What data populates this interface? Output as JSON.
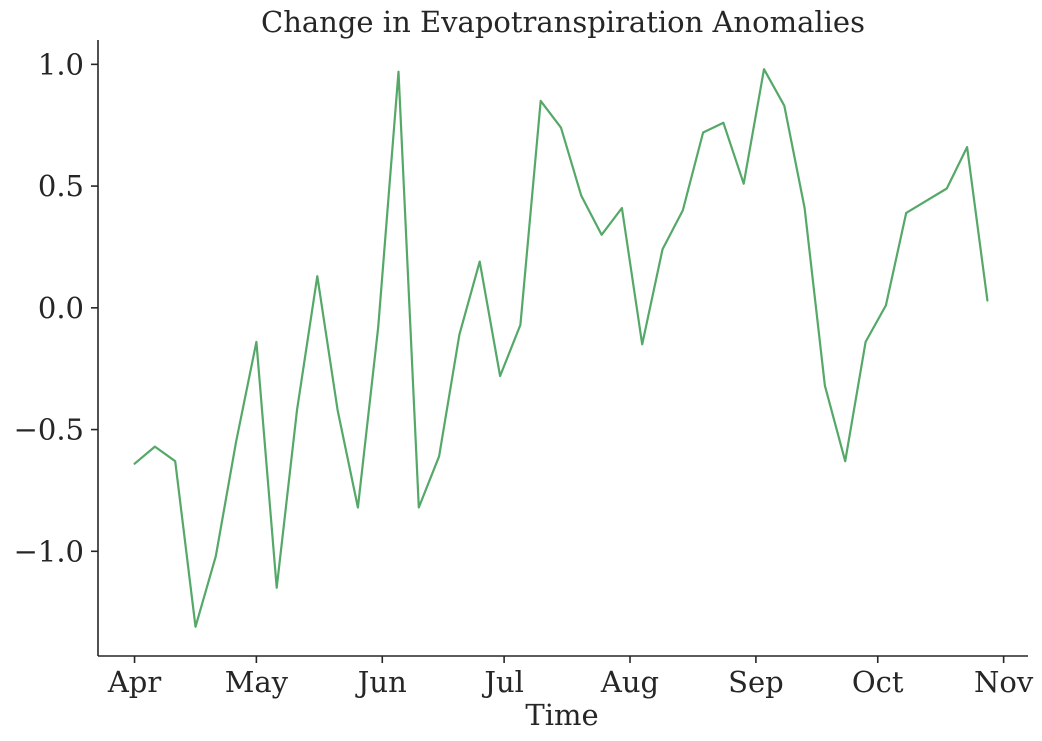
{
  "chart_data": {
    "type": "line",
    "title": "Change in Evapotranspiration Anomalies",
    "xlabel": "Time",
    "ylabel": "",
    "ylim": [
      -1.43,
      1.1
    ],
    "xlim": [
      "2023-03-23",
      "2023-11-07"
    ],
    "grid": false,
    "x_ticks": [
      {
        "label": "Apr",
        "date": "2023-04-01"
      },
      {
        "label": "May",
        "date": "2023-05-01"
      },
      {
        "label": "Jun",
        "date": "2023-06-01"
      },
      {
        "label": "Jul",
        "date": "2023-07-01"
      },
      {
        "label": "Aug",
        "date": "2023-08-01"
      },
      {
        "label": "Sep",
        "date": "2023-09-01"
      },
      {
        "label": "Oct",
        "date": "2023-10-01"
      },
      {
        "label": "Nov",
        "date": "2023-11-01"
      }
    ],
    "y_ticks": [
      {
        "label": "1.0",
        "value": 1.0
      },
      {
        "label": "0.5",
        "value": 0.5
      },
      {
        "label": "0.0",
        "value": 0.0
      },
      {
        "label": "−0.5",
        "value": -0.5
      },
      {
        "label": "−1.0",
        "value": -1.0
      }
    ],
    "series": [
      {
        "color": "#55a868",
        "x": [
          "2023-04-01",
          "2023-04-06",
          "2023-04-11",
          "2023-04-16",
          "2023-04-21",
          "2023-04-26",
          "2023-05-01",
          "2023-05-06",
          "2023-05-11",
          "2023-05-16",
          "2023-05-21",
          "2023-05-26",
          "2023-05-31",
          "2023-06-05",
          "2023-06-10",
          "2023-06-15",
          "2023-06-20",
          "2023-06-25",
          "2023-06-30",
          "2023-07-05",
          "2023-07-10",
          "2023-07-15",
          "2023-07-20",
          "2023-07-25",
          "2023-07-30",
          "2023-08-04",
          "2023-08-09",
          "2023-08-14",
          "2023-08-19",
          "2023-08-24",
          "2023-08-29",
          "2023-09-03",
          "2023-09-08",
          "2023-09-13",
          "2023-09-18",
          "2023-09-23",
          "2023-09-28",
          "2023-10-03",
          "2023-10-08",
          "2023-10-13",
          "2023-10-18",
          "2023-10-23",
          "2023-10-28"
        ],
        "values": [
          -0.64,
          -0.57,
          -0.63,
          -1.31,
          -1.02,
          -0.55,
          -0.14,
          -1.15,
          -0.42,
          0.13,
          -0.42,
          -0.82,
          -0.08,
          0.97,
          -0.82,
          -0.61,
          -0.11,
          0.19,
          -0.28,
          -0.07,
          0.85,
          0.74,
          0.46,
          0.3,
          0.41,
          -0.15,
          0.24,
          0.4,
          0.72,
          0.76,
          0.51,
          0.98,
          0.83,
          0.41,
          -0.32,
          -0.63,
          -0.14,
          0.01,
          0.39,
          0.44,
          0.49,
          0.66,
          0.03
        ]
      }
    ]
  }
}
